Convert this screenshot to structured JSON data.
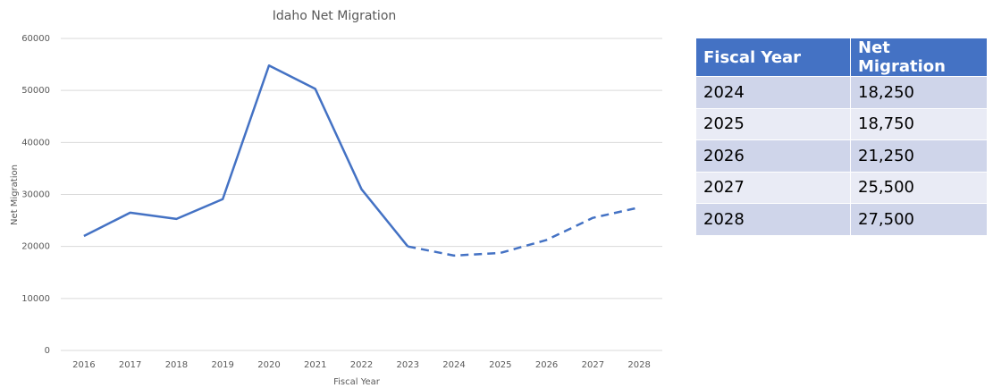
{
  "chart_data": {
    "type": "line",
    "title": "Idaho Net Migration",
    "x_label": "Fiscal Year",
    "y_label": "Net Migration",
    "categories": [
      "2016",
      "2017",
      "2018",
      "2019",
      "2020",
      "2021",
      "2022",
      "2023",
      "2024",
      "2025",
      "2026",
      "2027",
      "2028"
    ],
    "series": [
      {
        "color": "#4472c4",
        "dashed": false,
        "values": [
          22000,
          26500,
          25300,
          29100,
          54800,
          50300,
          31000,
          20000,
          null,
          null,
          null,
          null,
          null
        ]
      },
      {
        "color": "#4472c4",
        "dashed": true,
        "values": [
          null,
          null,
          null,
          null,
          null,
          null,
          null,
          20000,
          18250,
          18750,
          21250,
          25500,
          27500
        ]
      }
    ],
    "ylim": [
      0,
      60000
    ],
    "yticks": [
      0,
      10000,
      20000,
      30000,
      40000,
      50000,
      60000
    ],
    "grid": true
  },
  "table": {
    "header": [
      "Fiscal Year",
      "Net Migration"
    ],
    "rows": [
      [
        "2024",
        "18,250"
      ],
      [
        "2025",
        "18,750"
      ],
      [
        "2026",
        "21,250"
      ],
      [
        "2027",
        "25,500"
      ],
      [
        "2028",
        "27,500"
      ]
    ]
  }
}
